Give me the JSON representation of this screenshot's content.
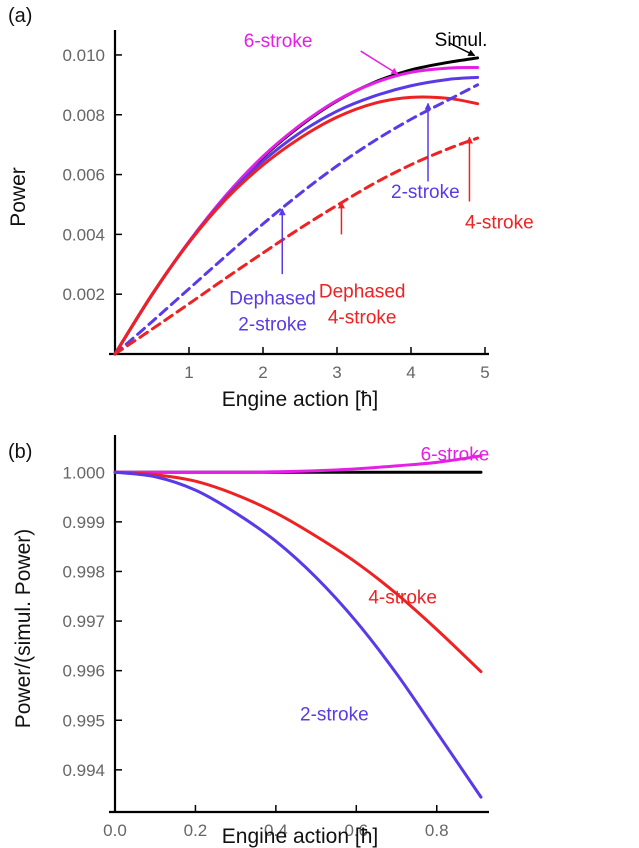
{
  "chart_data": [
    {
      "type": "line",
      "panel_label": "(a)",
      "xlabel": "Engine action [ħ]",
      "ylabel": "Power",
      "xlim": [
        0,
        5
      ],
      "ylim": [
        0,
        0.0105
      ],
      "xticks": [
        {
          "v": 1,
          "label": "1"
        },
        {
          "v": 2,
          "label": "2"
        },
        {
          "v": 3,
          "label": "3"
        },
        {
          "v": 4,
          "label": "4"
        },
        {
          "v": 5,
          "label": "5"
        }
      ],
      "yticks": [
        {
          "v": 0.002,
          "label": "0.002"
        },
        {
          "v": 0.004,
          "label": "0.004"
        },
        {
          "v": 0.006,
          "label": "0.006"
        },
        {
          "v": 0.008,
          "label": "0.008"
        },
        {
          "v": 0.01,
          "label": "0.010"
        }
      ],
      "grid": false,
      "series": [
        {
          "name": "Simul.",
          "color": "#000000",
          "dash": false,
          "x": [
            0,
            0.5,
            1,
            1.5,
            2,
            2.5,
            3,
            3.5,
            4,
            4.5,
            4.9
          ],
          "y": [
            0,
            0.00198,
            0.00375,
            0.00528,
            0.00658,
            0.00762,
            0.00846,
            0.00908,
            0.0095,
            0.00975,
            0.0099
          ]
        },
        {
          "name": "6-stroke",
          "color": "#e61ee6",
          "dash": false,
          "x": [
            0,
            0.5,
            1,
            1.5,
            2,
            2.5,
            3,
            3.5,
            4,
            4.5,
            4.9
          ],
          "y": [
            0,
            0.00199,
            0.00376,
            0.00531,
            0.00661,
            0.00765,
            0.00848,
            0.00906,
            0.00942,
            0.00956,
            0.00958
          ]
        },
        {
          "name": "2-stroke",
          "color": "#5a3ae8",
          "dash": false,
          "x": [
            0,
            0.5,
            1,
            1.5,
            2,
            2.5,
            3,
            3.5,
            4,
            4.5,
            4.9
          ],
          "y": [
            0,
            0.00198,
            0.00374,
            0.00523,
            0.00645,
            0.0074,
            0.00812,
            0.00862,
            0.00897,
            0.00918,
            0.00925
          ]
        },
        {
          "name": "4-stroke",
          "color": "#ee2222",
          "dash": false,
          "x": [
            0,
            0.5,
            1,
            1.5,
            2,
            2.5,
            3,
            3.5,
            4,
            4.5,
            4.9
          ],
          "y": [
            0,
            0.00199,
            0.00373,
            0.00518,
            0.00632,
            0.00722,
            0.00792,
            0.00838,
            0.00858,
            0.00855,
            0.00837
          ]
        },
        {
          "name": "Dephased 2-stroke",
          "color": "#5a3ae8",
          "dash": true,
          "x": [
            0,
            0.5,
            1,
            1.5,
            2,
            2.5,
            3,
            3.5,
            4,
            4.5,
            4.9
          ],
          "y": [
            0,
            0.00108,
            0.00218,
            0.00328,
            0.00435,
            0.00536,
            0.00629,
            0.00712,
            0.00785,
            0.00849,
            0.009
          ]
        },
        {
          "name": "Dephased 4-stroke",
          "color": "#ee2222",
          "dash": true,
          "x": [
            0,
            0.5,
            1,
            1.5,
            2,
            2.5,
            3,
            3.5,
            4,
            4.5,
            4.9
          ],
          "y": [
            0,
            0.00083,
            0.00168,
            0.00254,
            0.00338,
            0.0042,
            0.00497,
            0.0057,
            0.00633,
            0.00686,
            0.00722
          ]
        }
      ],
      "annotations": [
        {
          "id": "6-stroke",
          "text": "6-stroke",
          "color": "#e61ee6",
          "lines": [
            "6-stroke"
          ],
          "label_x": 1.74,
          "label_y": 0.01027,
          "arrow_from": [
            3.32,
            0.01013
          ],
          "arrow_to": [
            3.82,
            0.00936
          ]
        },
        {
          "id": "simul",
          "text": "Simul.",
          "color": "#000000",
          "lines": [
            "Simul."
          ],
          "label_x": 4.32,
          "label_y": 0.0103,
          "arrow_from": [
            4.52,
            0.0104
          ],
          "arrow_to": [
            4.86,
            0.00998
          ]
        },
        {
          "id": "2-stroke",
          "text": "2-stroke",
          "color": "#5a3ae8",
          "lines": [
            "2-stroke"
          ],
          "label_x": 3.73,
          "label_y": 0.00522,
          "arrow_from": [
            4.23,
            0.00577
          ],
          "arrow_to": [
            4.23,
            0.00838
          ]
        },
        {
          "id": "4-stroke",
          "text": "4-stroke",
          "color": "#ee2222",
          "lines": [
            "4-stroke"
          ],
          "label_x": 4.73,
          "label_y": 0.0042,
          "arrow_from": [
            4.79,
            0.0051
          ],
          "arrow_to": [
            4.79,
            0.00725
          ]
        },
        {
          "id": "dephased-2",
          "text": "Dephased 2-stroke",
          "color": "#5a3ae8",
          "lines": [
            "Dephased",
            "2-stroke"
          ],
          "label_x": 2.13,
          "label_y": 0.00165,
          "arrow_from": [
            2.26,
            0.00267
          ],
          "arrow_to": [
            2.26,
            0.00485
          ]
        },
        {
          "id": "dephased-4",
          "text": "Dephased 4-stroke",
          "color": "#ee2222",
          "lines": [
            "Dephased",
            "4-stroke"
          ],
          "label_x": 3.34,
          "label_y": 0.00189,
          "arrow_from": [
            3.06,
            0.004
          ],
          "arrow_to": [
            3.06,
            0.00508
          ]
        }
      ]
    },
    {
      "type": "line",
      "panel_label": "(b)",
      "xlabel": "Engine action [ħ]",
      "ylabel": "Power/(simul. Power)",
      "xlim": [
        0,
        0.92
      ],
      "ylim": [
        0.99315,
        1.00055
      ],
      "xticks": [
        {
          "v": 0.0,
          "label": "0.0"
        },
        {
          "v": 0.2,
          "label": "0.2"
        },
        {
          "v": 0.4,
          "label": "0.4"
        },
        {
          "v": 0.6,
          "label": "0.6"
        },
        {
          "v": 0.8,
          "label": "0.8"
        }
      ],
      "yticks": [
        {
          "v": 0.994,
          "label": "0.994"
        },
        {
          "v": 0.995,
          "label": "0.995"
        },
        {
          "v": 0.996,
          "label": "0.996"
        },
        {
          "v": 0.997,
          "label": "0.997"
        },
        {
          "v": 0.998,
          "label": "0.998"
        },
        {
          "v": 0.999,
          "label": "0.999"
        },
        {
          "v": 1.0,
          "label": "1.000"
        }
      ],
      "grid": false,
      "series": [
        {
          "name": "Simul.",
          "color": "#000000",
          "dash": false,
          "x": [
            0,
            0.1,
            0.2,
            0.3,
            0.4,
            0.5,
            0.6,
            0.7,
            0.8,
            0.91
          ],
          "y": [
            1.0,
            1.0,
            1.0,
            1.0,
            1.0,
            1.0,
            1.0,
            1.0,
            1.0,
            1.0
          ]
        },
        {
          "name": "6-stroke",
          "color": "#e61ee6",
          "dash": false,
          "x": [
            0,
            0.1,
            0.2,
            0.3,
            0.4,
            0.5,
            0.6,
            0.7,
            0.8,
            0.91
          ],
          "y": [
            1.0,
            1.0,
            1.0,
            1.0,
            1.00001,
            1.00003,
            1.00007,
            1.00013,
            1.0002,
            1.00033
          ]
        },
        {
          "name": "4-stroke",
          "color": "#ee2222",
          "dash": false,
          "x": [
            0,
            0.1,
            0.2,
            0.3,
            0.4,
            0.5,
            0.6,
            0.7,
            0.8,
            0.91
          ],
          "y": [
            1.0,
            0.99995,
            0.99982,
            0.99955,
            0.99918,
            0.99871,
            0.99818,
            0.99755,
            0.99683,
            0.99598
          ]
        },
        {
          "name": "2-stroke",
          "color": "#5a3ae8",
          "dash": false,
          "x": [
            0,
            0.1,
            0.2,
            0.3,
            0.4,
            0.5,
            0.6,
            0.7,
            0.8,
            0.91
          ],
          "y": [
            1.0,
            0.99991,
            0.99964,
            0.99918,
            0.99861,
            0.99788,
            0.99699,
            0.99594,
            0.99476,
            0.99345
          ]
        }
      ],
      "annotations": [
        {
          "id": "6-stroke",
          "text": "6-stroke",
          "color": "#e61ee6",
          "lines": [
            "6-stroke"
          ],
          "label_x": 0.76,
          "label_y": 1.00024
        },
        {
          "id": "4-stroke",
          "text": "4-stroke",
          "color": "#ee2222",
          "lines": [
            "4-stroke"
          ],
          "label_x": 0.63,
          "label_y": 0.99735
        },
        {
          "id": "2-stroke",
          "text": "2-stroke",
          "color": "#5a3ae8",
          "lines": [
            "2-stroke"
          ],
          "label_x": 0.46,
          "label_y": 0.99499
        }
      ]
    }
  ]
}
